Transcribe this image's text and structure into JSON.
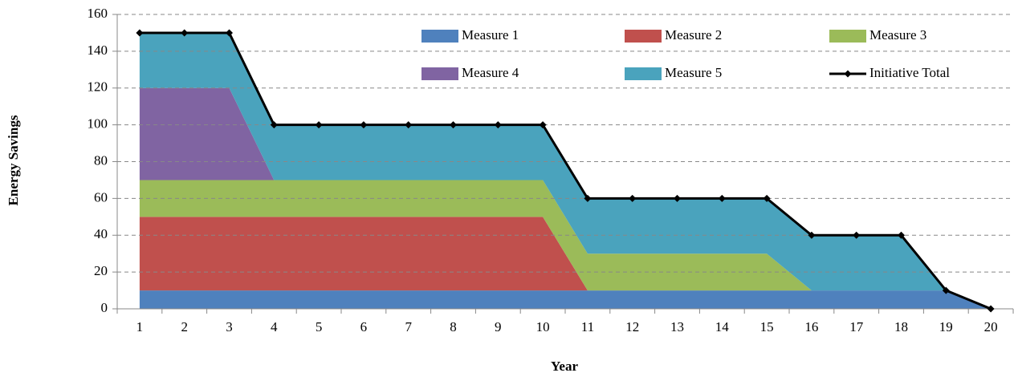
{
  "chart_data": {
    "type": "stacked_area",
    "x_label": "Year",
    "y_label": "Energy Savings",
    "categories": [
      "1",
      "2",
      "3",
      "4",
      "5",
      "6",
      "7",
      "8",
      "9",
      "10",
      "11",
      "12",
      "13",
      "14",
      "15",
      "16",
      "17",
      "18",
      "19",
      "20"
    ],
    "series": [
      {
        "name": "Measure 1",
        "color": "#4f81bd",
        "values": [
          10,
          10,
          10,
          10,
          10,
          10,
          10,
          10,
          10,
          10,
          10,
          10,
          10,
          10,
          10,
          10,
          10,
          10,
          10,
          0
        ]
      },
      {
        "name": "Measure 2",
        "color": "#c0504d",
        "values": [
          40,
          40,
          40,
          40,
          40,
          40,
          40,
          40,
          40,
          40,
          0,
          0,
          0,
          0,
          0,
          0,
          0,
          0,
          0,
          0
        ]
      },
      {
        "name": "Measure 3",
        "color": "#9bbb59",
        "values": [
          20,
          20,
          20,
          20,
          20,
          20,
          20,
          20,
          20,
          20,
          20,
          20,
          20,
          20,
          20,
          0,
          0,
          0,
          0,
          0
        ]
      },
      {
        "name": "Measure 4",
        "color": "#8064a2",
        "values": [
          50,
          50,
          50,
          0,
          0,
          0,
          0,
          0,
          0,
          0,
          0,
          0,
          0,
          0,
          0,
          0,
          0,
          0,
          0,
          0
        ]
      },
      {
        "name": "Measure 5",
        "color": "#4aa3bd",
        "values": [
          30,
          30,
          30,
          30,
          30,
          30,
          30,
          30,
          30,
          30,
          30,
          30,
          30,
          30,
          30,
          30,
          30,
          30,
          0,
          0
        ]
      }
    ],
    "line": {
      "name": "Initiative Total",
      "color": "#000000",
      "values": [
        150,
        150,
        150,
        100,
        100,
        100,
        100,
        100,
        100,
        100,
        60,
        60,
        60,
        60,
        60,
        40,
        40,
        40,
        10,
        0
      ]
    },
    "ylim": [
      0,
      160
    ],
    "yticks": [
      0,
      20,
      40,
      60,
      80,
      100,
      120,
      140,
      160
    ],
    "grid": true,
    "legend": "top-right"
  }
}
